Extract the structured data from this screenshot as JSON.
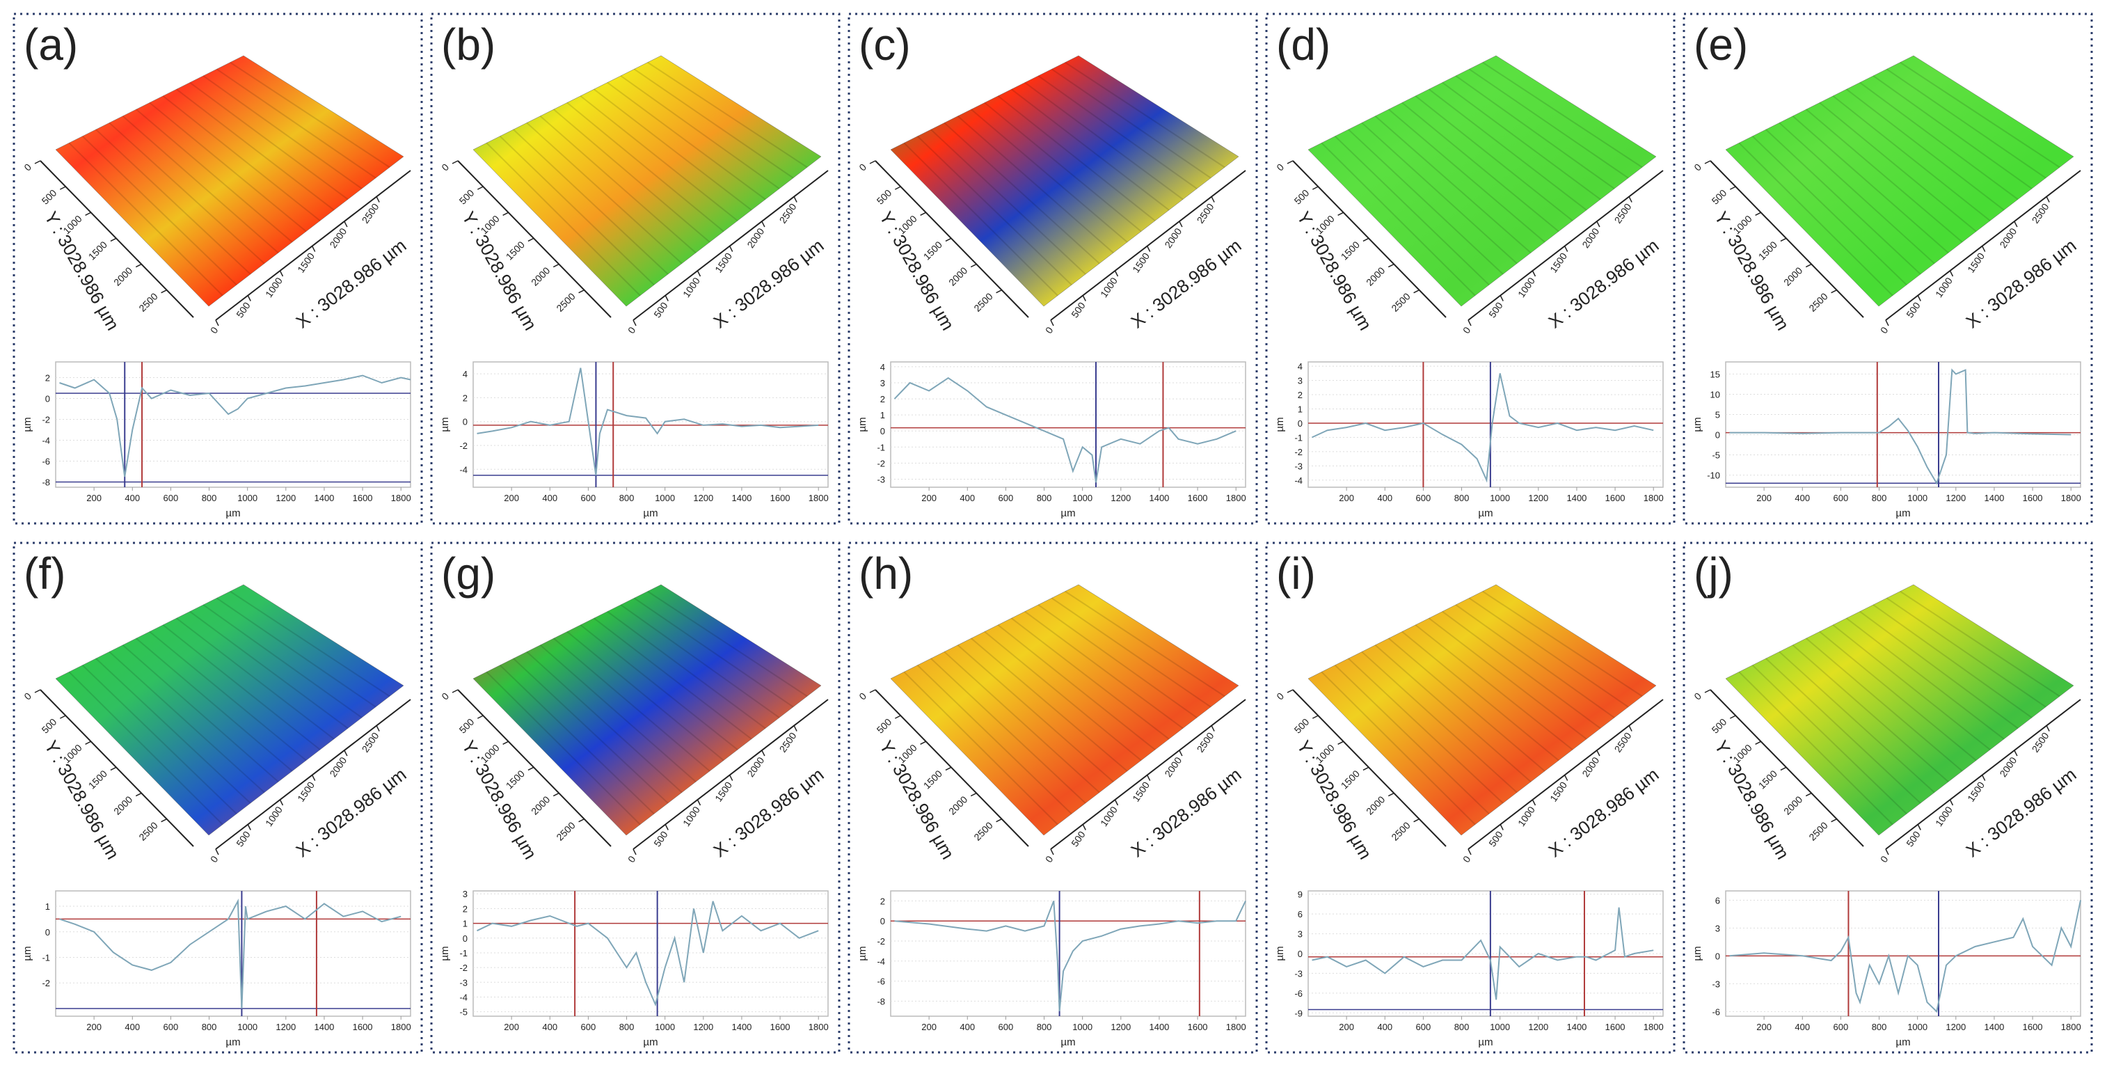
{
  "chart_data": [
    {
      "type": "line",
      "title": "(a)",
      "surface": {
        "x_label": "X : 3028.986 µm",
        "y_label": "Y : 3028.986 µm",
        "lim": [
          0,
          3028.986
        ],
        "x_ticks": [
          0,
          500,
          1000,
          1500,
          2000,
          2500
        ],
        "y_ticks": [
          0,
          500,
          1000,
          1500,
          2000,
          2500
        ]
      },
      "x_label": "µm",
      "y_label": "µm",
      "color": "#7fa6b8",
      "xlim": [
        0,
        1850
      ],
      "xticks": [
        200,
        400,
        600,
        800,
        1000,
        1200,
        1400,
        1600,
        1800
      ],
      "ylim": [
        -8.5,
        3.5
      ],
      "yticks": [
        -8,
        -6,
        -4,
        -2,
        0,
        2
      ],
      "x": [
        20,
        100,
        200,
        280,
        320,
        360,
        400,
        450,
        500,
        600,
        700,
        800,
        900,
        950,
        1000,
        1100,
        1200,
        1300,
        1400,
        1500,
        1600,
        1700,
        1800,
        1850
      ],
      "values": [
        1.5,
        1,
        1.8,
        0.5,
        -2,
        -7.5,
        -3,
        1,
        0,
        0.8,
        0.3,
        0.5,
        -1.5,
        -1,
        0,
        0.5,
        1,
        1.2,
        1.5,
        1.8,
        2.2,
        1.5,
        2,
        1.8
      ],
      "vlines": [
        {
          "x": 360,
          "color": "#3a3d8f"
        },
        {
          "x": 450,
          "color": "#b03a3a"
        }
      ],
      "hlines": [
        {
          "y": 0.5,
          "color": "#3a3d8f"
        },
        {
          "y": -8,
          "color": "#3a3d8f"
        }
      ]
    },
    {
      "type": "line",
      "title": "(b)",
      "surface": {
        "x_label": "X : 3028.986 µm",
        "y_label": "Y : 3028.986 µm",
        "lim": [
          0,
          3028.986
        ],
        "x_ticks": [
          0,
          500,
          1000,
          1500,
          2000,
          2500
        ],
        "y_ticks": [
          0,
          500,
          1000,
          1500,
          2000,
          2500
        ]
      },
      "x_label": "µm",
      "y_label": "µm",
      "color": "#7fa6b8",
      "xlim": [
        0,
        1850
      ],
      "xticks": [
        200,
        400,
        600,
        800,
        1000,
        1200,
        1400,
        1600,
        1800
      ],
      "ylim": [
        -5.5,
        5
      ],
      "yticks": [
        -4,
        -2,
        0,
        2,
        4
      ],
      "x": [
        20,
        100,
        200,
        300,
        400,
        500,
        560,
        600,
        640,
        660,
        700,
        800,
        900,
        960,
        1000,
        1100,
        1200,
        1300,
        1400,
        1500,
        1600,
        1700,
        1800
      ],
      "values": [
        -1,
        -0.8,
        -0.5,
        0,
        -0.3,
        0,
        4.5,
        0,
        -4.5,
        -1,
        1,
        0.5,
        0.3,
        -1,
        0,
        0.2,
        -0.3,
        -0.2,
        -0.4,
        -0.3,
        -0.5,
        -0.4,
        -0.3
      ],
      "vlines": [
        {
          "x": 640,
          "color": "#3a3d8f"
        },
        {
          "x": 730,
          "color": "#b03a3a"
        }
      ],
      "hlines": [
        {
          "y": -0.3,
          "color": "#b03a3a"
        },
        {
          "y": -4.5,
          "color": "#3a3d8f"
        }
      ]
    },
    {
      "type": "line",
      "title": "(c)",
      "surface": {
        "x_label": "X : 3028.986 µm",
        "y_label": "Y : 3028.986 µm",
        "lim": [
          0,
          3028.986
        ],
        "x_ticks": [
          0,
          500,
          1000,
          1500,
          2000,
          2500
        ],
        "y_ticks": [
          0,
          500,
          1000,
          1500,
          2000,
          2500
        ]
      },
      "x_label": "µm",
      "y_label": "µm",
      "color": "#7fa6b8",
      "xlim": [
        0,
        1850
      ],
      "xticks": [
        200,
        400,
        600,
        800,
        1000,
        1200,
        1400,
        1600,
        1800
      ],
      "ylim": [
        -3.5,
        4.3
      ],
      "yticks": [
        -3,
        -2,
        -1,
        0,
        1,
        2,
        3,
        4
      ],
      "x": [
        20,
        100,
        200,
        300,
        400,
        500,
        600,
        700,
        800,
        900,
        950,
        1000,
        1050,
        1070,
        1100,
        1200,
        1300,
        1400,
        1450,
        1500,
        1600,
        1700,
        1800
      ],
      "values": [
        2,
        3,
        2.5,
        3.3,
        2.5,
        1.5,
        1,
        0.5,
        0,
        -0.5,
        -2.5,
        -1,
        -1.5,
        -3.2,
        -1,
        -0.5,
        -0.8,
        0,
        0.2,
        -0.5,
        -0.8,
        -0.5,
        0
      ],
      "vlines": [
        {
          "x": 1070,
          "color": "#3a3d8f"
        },
        {
          "x": 1420,
          "color": "#b03a3a"
        }
      ],
      "hlines": [
        {
          "y": 0.2,
          "color": "#b03a3a"
        }
      ]
    },
    {
      "type": "line",
      "title": "(d)",
      "surface": {
        "x_label": "X : 3028.986 µm",
        "y_label": "Y : 3028.986 µm",
        "lim": [
          0,
          3028.986
        ],
        "x_ticks": [
          0,
          500,
          1000,
          1500,
          2000,
          2500
        ],
        "y_ticks": [
          0,
          500,
          1000,
          1500,
          2000,
          2500
        ]
      },
      "x_label": "µm",
      "y_label": "µm",
      "color": "#7fa6b8",
      "xlim": [
        0,
        1850
      ],
      "xticks": [
        200,
        400,
        600,
        800,
        1000,
        1200,
        1400,
        1600,
        1800
      ],
      "ylim": [
        -4.5,
        4.3
      ],
      "yticks": [
        -4,
        -3,
        -2,
        -1,
        0,
        1,
        2,
        3,
        4
      ],
      "x": [
        20,
        100,
        200,
        300,
        400,
        500,
        600,
        700,
        800,
        880,
        930,
        960,
        1000,
        1050,
        1100,
        1200,
        1300,
        1400,
        1500,
        1600,
        1700,
        1800
      ],
      "values": [
        -1,
        -0.5,
        -0.3,
        0,
        -0.5,
        -0.3,
        0,
        -0.8,
        -1.5,
        -2.5,
        -4,
        0,
        3.5,
        0.5,
        0,
        -0.3,
        0,
        -0.5,
        -0.3,
        -0.5,
        -0.2,
        -0.5
      ],
      "vlines": [
        {
          "x": 600,
          "color": "#b03a3a"
        },
        {
          "x": 950,
          "color": "#3a3d8f"
        }
      ],
      "hlines": [
        {
          "y": 0,
          "color": "#b03a3a"
        }
      ]
    },
    {
      "type": "line",
      "title": "(e)",
      "surface": {
        "x_label": "X : 3028.986 µm",
        "y_label": "Y : 3028.986 µm",
        "lim": [
          0,
          3028.986
        ],
        "x_ticks": [
          0,
          500,
          1000,
          1500,
          2000,
          2500
        ],
        "y_ticks": [
          0,
          500,
          1000,
          1500,
          2000,
          2500
        ]
      },
      "x_label": "µm",
      "y_label": "µm",
      "color": "#7fa6b8",
      "xlim": [
        0,
        1850
      ],
      "xticks": [
        200,
        400,
        600,
        800,
        1000,
        1200,
        1400,
        1600,
        1800
      ],
      "ylim": [
        -13,
        18
      ],
      "yticks": [
        -10,
        -5,
        0,
        5,
        10,
        15
      ],
      "x": [
        20,
        200,
        400,
        600,
        800,
        850,
        900,
        950,
        1000,
        1050,
        1100,
        1150,
        1180,
        1200,
        1250,
        1260,
        1300,
        1400,
        1600,
        1800
      ],
      "values": [
        0.5,
        0.5,
        0.3,
        0.5,
        0.5,
        2,
        4,
        1,
        -3,
        -8,
        -12,
        -5,
        16,
        15,
        16,
        0.5,
        0.3,
        0.5,
        0.2,
        0
      ],
      "vlines": [
        {
          "x": 790,
          "color": "#b03a3a"
        },
        {
          "x": 1110,
          "color": "#3a3d8f"
        }
      ],
      "hlines": [
        {
          "y": 0.5,
          "color": "#b03a3a"
        },
        {
          "y": -12,
          "color": "#3a3d8f"
        }
      ]
    },
    {
      "type": "line",
      "title": "(f)",
      "surface": {
        "x_label": "X : 3028.986 µm",
        "y_label": "Y : 3028.986 µm",
        "lim": [
          0,
          3028.986
        ],
        "x_ticks": [
          0,
          500,
          1000,
          1500,
          2000,
          2500
        ],
        "y_ticks": [
          0,
          500,
          1000,
          1500,
          2000,
          2500
        ]
      },
      "x_label": "µm",
      "y_label": "µm",
      "color": "#7fa6b8",
      "xlim": [
        0,
        1850
      ],
      "xticks": [
        200,
        400,
        600,
        800,
        1000,
        1200,
        1400,
        1600,
        1800
      ],
      "ylim": [
        -3.3,
        1.6
      ],
      "yticks": [
        -2,
        -1,
        0,
        1
      ],
      "x": [
        20,
        100,
        200,
        300,
        400,
        500,
        600,
        700,
        800,
        900,
        950,
        970,
        990,
        1000,
        1100,
        1200,
        1300,
        1350,
        1400,
        1500,
        1600,
        1700,
        1800
      ],
      "values": [
        0.5,
        0.3,
        0,
        -0.8,
        -1.3,
        -1.5,
        -1.2,
        -0.5,
        0,
        0.5,
        1.2,
        -3,
        1,
        0.5,
        0.8,
        1,
        0.5,
        0.8,
        1.1,
        0.6,
        0.8,
        0.4,
        0.6
      ],
      "vlines": [
        {
          "x": 970,
          "color": "#3a3d8f"
        },
        {
          "x": 1360,
          "color": "#b03a3a"
        }
      ],
      "hlines": [
        {
          "y": 0.5,
          "color": "#b03a3a"
        },
        {
          "y": -3,
          "color": "#3a3d8f"
        }
      ]
    },
    {
      "type": "line",
      "title": "(g)",
      "surface": {
        "x_label": "X : 3028.986 µm",
        "y_label": "Y : 3028.986 µm",
        "lim": [
          0,
          3028.986
        ],
        "x_ticks": [
          0,
          500,
          1000,
          1500,
          2000,
          2500
        ],
        "y_ticks": [
          0,
          500,
          1000,
          1500,
          2000,
          2500
        ]
      },
      "x_label": "µm",
      "y_label": "µm",
      "color": "#7fa6b8",
      "xlim": [
        0,
        1850
      ],
      "xticks": [
        200,
        400,
        600,
        800,
        1000,
        1200,
        1400,
        1600,
        1800
      ],
      "ylim": [
        -5.3,
        3.2
      ],
      "yticks": [
        -5,
        -4,
        -3,
        -2,
        -1,
        0,
        1,
        2,
        3
      ],
      "x": [
        20,
        100,
        200,
        300,
        400,
        500,
        540,
        600,
        700,
        800,
        850,
        900,
        950,
        1000,
        1050,
        1100,
        1150,
        1200,
        1250,
        1300,
        1400,
        1500,
        1600,
        1700,
        1800
      ],
      "values": [
        0.5,
        1,
        0.8,
        1.2,
        1.5,
        1,
        0.8,
        1,
        0,
        -2,
        -1,
        -3,
        -4.5,
        -2,
        0,
        -3,
        2,
        -1,
        2.5,
        0.5,
        1.5,
        0.5,
        1,
        0,
        0.5
      ],
      "vlines": [
        {
          "x": 530,
          "color": "#b03a3a"
        },
        {
          "x": 960,
          "color": "#3a3d8f"
        }
      ],
      "hlines": [
        {
          "y": 1,
          "color": "#b03a3a"
        }
      ]
    },
    {
      "type": "line",
      "title": "(h)",
      "surface": {
        "x_label": "X : 3028.986 µm",
        "y_label": "Y : 3028.986 µm",
        "lim": [
          0,
          3028.986
        ],
        "x_ticks": [
          0,
          500,
          1000,
          1500,
          2000,
          2500
        ],
        "y_ticks": [
          0,
          500,
          1000,
          1500,
          2000,
          2500
        ]
      },
      "x_label": "µm",
      "y_label": "µm",
      "color": "#7fa6b8",
      "xlim": [
        0,
        1850
      ],
      "xticks": [
        200,
        400,
        600,
        800,
        1000,
        1200,
        1400,
        1600,
        1800
      ],
      "ylim": [
        -9.5,
        3
      ],
      "yticks": [
        -8,
        -6,
        -4,
        -2,
        0,
        2
      ],
      "x": [
        20,
        200,
        400,
        500,
        600,
        700,
        800,
        850,
        870,
        880,
        900,
        950,
        1000,
        1100,
        1200,
        1300,
        1400,
        1500,
        1600,
        1700,
        1800,
        1850
      ],
      "values": [
        0,
        -0.3,
        -0.8,
        -1,
        -0.5,
        -1,
        -0.5,
        2,
        -4,
        -9,
        -5,
        -3,
        -2,
        -1.5,
        -0.8,
        -0.5,
        -0.3,
        0,
        -0.2,
        0,
        0,
        2
      ],
      "vlines": [
        {
          "x": 880,
          "color": "#3a3d8f"
        },
        {
          "x": 1610,
          "color": "#b03a3a"
        }
      ],
      "hlines": [
        {
          "y": 0,
          "color": "#b03a3a"
        }
      ]
    },
    {
      "type": "line",
      "title": "(i)",
      "surface": {
        "x_label": "X : 3028.986 µm",
        "y_label": "Y : 3028.986 µm",
        "lim": [
          0,
          3028.986
        ],
        "x_ticks": [
          0,
          500,
          1000,
          1500,
          2000,
          2500
        ],
        "y_ticks": [
          0,
          500,
          1000,
          1500,
          2000,
          2500
        ]
      },
      "x_label": "µm",
      "y_label": "µm",
      "color": "#7fa6b8",
      "xlim": [
        0,
        1850
      ],
      "xticks": [
        200,
        400,
        600,
        800,
        1000,
        1200,
        1400,
        1600,
        1800
      ],
      "ylim": [
        -9.5,
        9.5
      ],
      "yticks": [
        -9,
        -6,
        -3,
        0,
        3,
        6,
        9
      ],
      "x": [
        20,
        100,
        200,
        300,
        400,
        500,
        600,
        700,
        800,
        900,
        950,
        980,
        1000,
        1100,
        1200,
        1300,
        1400,
        1450,
        1500,
        1600,
        1620,
        1650,
        1700,
        1800
      ],
      "values": [
        -1,
        -0.5,
        -2,
        -1,
        -3,
        -0.5,
        -2,
        -1,
        -1,
        2,
        -1,
        -7,
        1,
        -2,
        0,
        -1,
        -0.5,
        -0.5,
        -1,
        0.5,
        7,
        -0.5,
        0,
        0.5
      ],
      "vlines": [
        {
          "x": 950,
          "color": "#3a3d8f"
        },
        {
          "x": 1440,
          "color": "#b03a3a"
        }
      ],
      "hlines": [
        {
          "y": -0.5,
          "color": "#b03a3a"
        },
        {
          "y": -8.5,
          "color": "#3a3d8f"
        }
      ]
    },
    {
      "type": "line",
      "title": "(j)",
      "surface": {
        "x_label": "X : 3028.986 µm",
        "y_label": "Y : 3028.986 µm",
        "lim": [
          0,
          3028.986
        ],
        "x_ticks": [
          0,
          500,
          1000,
          1500,
          2000,
          2500
        ],
        "y_ticks": [
          0,
          500,
          1000,
          1500,
          2000,
          2500
        ]
      },
      "x_label": "µm",
      "y_label": "µm",
      "color": "#7fa6b8",
      "xlim": [
        0,
        1850
      ],
      "xticks": [
        200,
        400,
        600,
        800,
        1000,
        1200,
        1400,
        1600,
        1800
      ],
      "ylim": [
        -6.5,
        7
      ],
      "yticks": [
        -6,
        -3,
        0,
        3,
        6
      ],
      "x": [
        20,
        200,
        400,
        550,
        600,
        640,
        680,
        700,
        750,
        800,
        850,
        900,
        950,
        1000,
        1050,
        1100,
        1150,
        1200,
        1300,
        1400,
        1500,
        1550,
        1600,
        1700,
        1750,
        1800,
        1850
      ],
      "values": [
        0,
        0.3,
        0,
        -0.5,
        0.5,
        2,
        -4,
        -5,
        -1,
        -3,
        0,
        -4,
        0,
        -1,
        -5,
        -6,
        -1,
        0,
        1,
        1.5,
        2,
        4,
        1,
        -1,
        3,
        1,
        6
      ],
      "vlines": [
        {
          "x": 640,
          "color": "#b03a3a"
        },
        {
          "x": 1110,
          "color": "#3a3d8f"
        }
      ],
      "hlines": [
        {
          "y": 0,
          "color": "#b03a3a"
        }
      ]
    }
  ]
}
